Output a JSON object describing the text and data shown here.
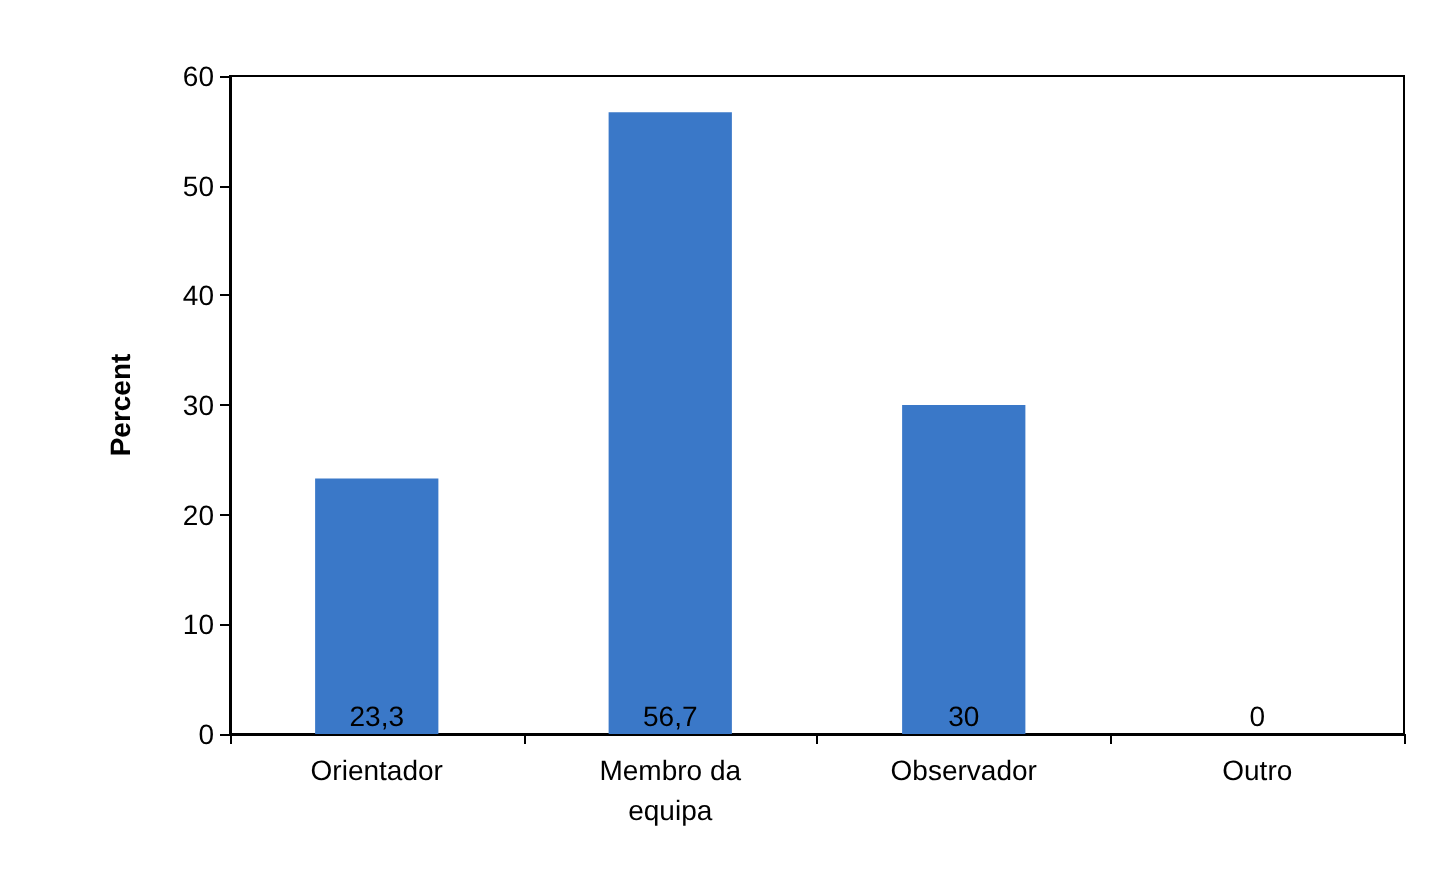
{
  "chart_data": {
    "type": "bar",
    "ylabel": "Percent",
    "categories": [
      "Orientador",
      "Membro da\nequipa",
      "Observador",
      "Outro"
    ],
    "values": [
      23.3,
      56.7,
      30,
      0
    ],
    "value_labels": [
      "23,3",
      "56,7",
      "30",
      "0"
    ],
    "color": "#3a78c8",
    "ylim": [
      0,
      60
    ],
    "yticks": [
      0,
      10,
      20,
      30,
      40,
      50,
      60
    ],
    "grid": false
  }
}
